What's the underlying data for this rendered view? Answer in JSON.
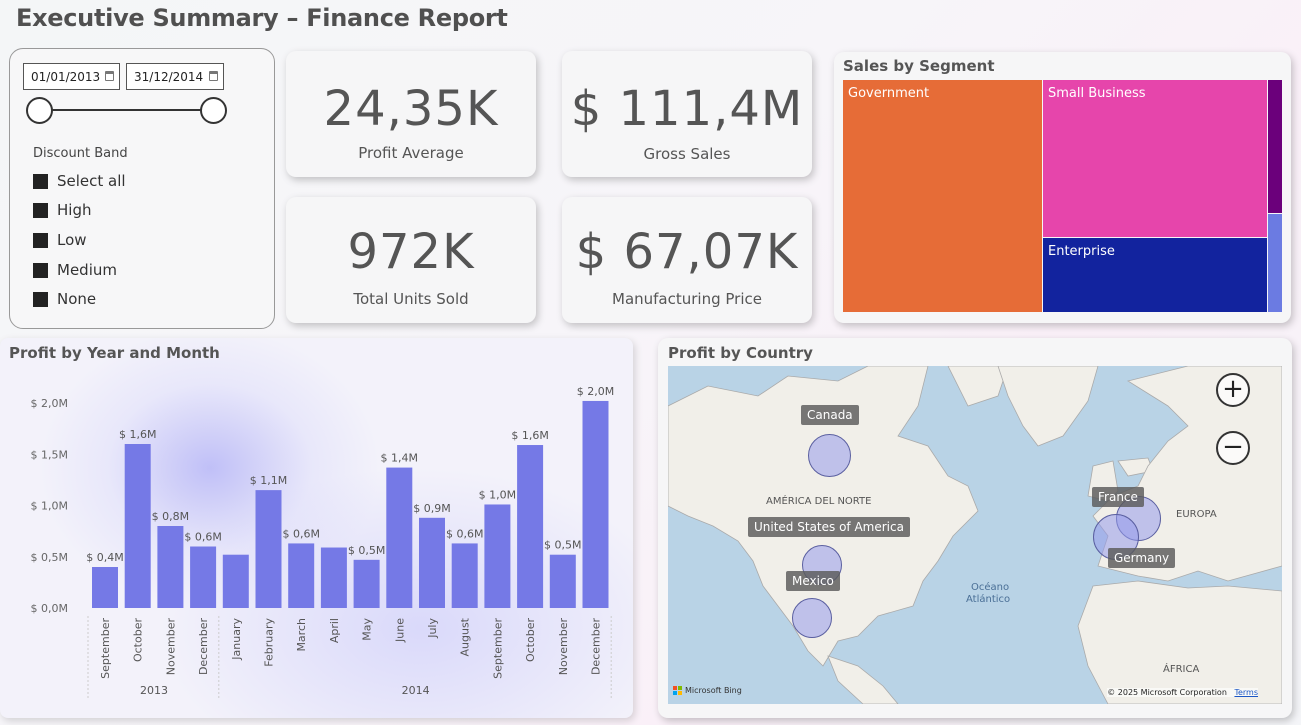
{
  "title": "Executive Summary – Finance Report",
  "filter": {
    "date_start": "01/01/2013",
    "date_end": "31/12/2014",
    "band_title": "Discount Band",
    "band_options": [
      "Select all",
      "High",
      "Low",
      "Medium",
      "None"
    ]
  },
  "kpis": {
    "profit_avg": {
      "value": "24,35K",
      "label": "Profit Average"
    },
    "gross_sales": {
      "value": "$ 111,4M",
      "label": "Gross Sales"
    },
    "units_sold": {
      "value": "972K",
      "label": "Total Units Sold"
    },
    "mfg_price": {
      "value": "$ 67,07K",
      "label": "Manufacturing Price"
    }
  },
  "segment": {
    "title": "Sales by Segment",
    "items": [
      {
        "name": "Government",
        "color": "#e66c37"
      },
      {
        "name": "Small Business",
        "color": "#e645ab"
      },
      {
        "name": "Enterprise",
        "color": "#12239e"
      },
      {
        "name": "",
        "color": "#6b007b"
      },
      {
        "name": "",
        "color": "#6b7be2"
      }
    ]
  },
  "bar_chart": {
    "title": "Profit by Year and Month",
    "color": "#7579e6"
  },
  "chart_data": {
    "type": "bar",
    "title": "Profit by Year and Month",
    "categories": [
      "September",
      "October",
      "November",
      "December",
      "January",
      "February",
      "March",
      "April",
      "May",
      "June",
      "July",
      "August",
      "September",
      "October",
      "November",
      "December"
    ],
    "years": [
      {
        "label": "2013",
        "from": 0,
        "to": 3
      },
      {
        "label": "2014",
        "from": 4,
        "to": 15
      }
    ],
    "values": [
      0.4,
      1.6,
      0.8,
      0.6,
      0.52,
      1.15,
      0.63,
      0.59,
      0.47,
      1.37,
      0.88,
      0.63,
      1.01,
      1.59,
      0.52,
      2.02
    ],
    "data_labels": [
      "$ 0,4M",
      "$ 1,6M",
      "$ 0,8M",
      "$ 0,6M",
      "",
      "$ 1,1M",
      "$ 0,6M",
      "",
      "$ 0,5M",
      "$ 1,4M",
      "$ 0,9M",
      "$ 0,6M",
      "$ 1,0M",
      "$ 1,6M",
      "$ 0,5M",
      "$ 2,0M"
    ],
    "yticks": [
      0,
      0.5,
      1.0,
      1.5,
      2.0
    ],
    "ytick_labels": [
      "$ 0,0M",
      "$ 0,5M",
      "$ 1,0M",
      "$ 1,5M",
      "$ 2,0M"
    ],
    "ylim": [
      0,
      2.0
    ],
    "grid": false
  },
  "map": {
    "title": "Profit by Country",
    "countries": [
      "Canada",
      "United States of America",
      "Mexico",
      "France",
      "Germany"
    ],
    "region_labels": [
      "AMÉRICA DEL NORTE",
      "EUROPA",
      "Océano",
      "Atlántico",
      "ÁFRICA"
    ],
    "attribution_left": "Microsoft Bing",
    "attribution_right": "© 2025 Microsoft Corporation",
    "terms": "Terms",
    "zoom_in": "+",
    "zoom_out": "−"
  }
}
